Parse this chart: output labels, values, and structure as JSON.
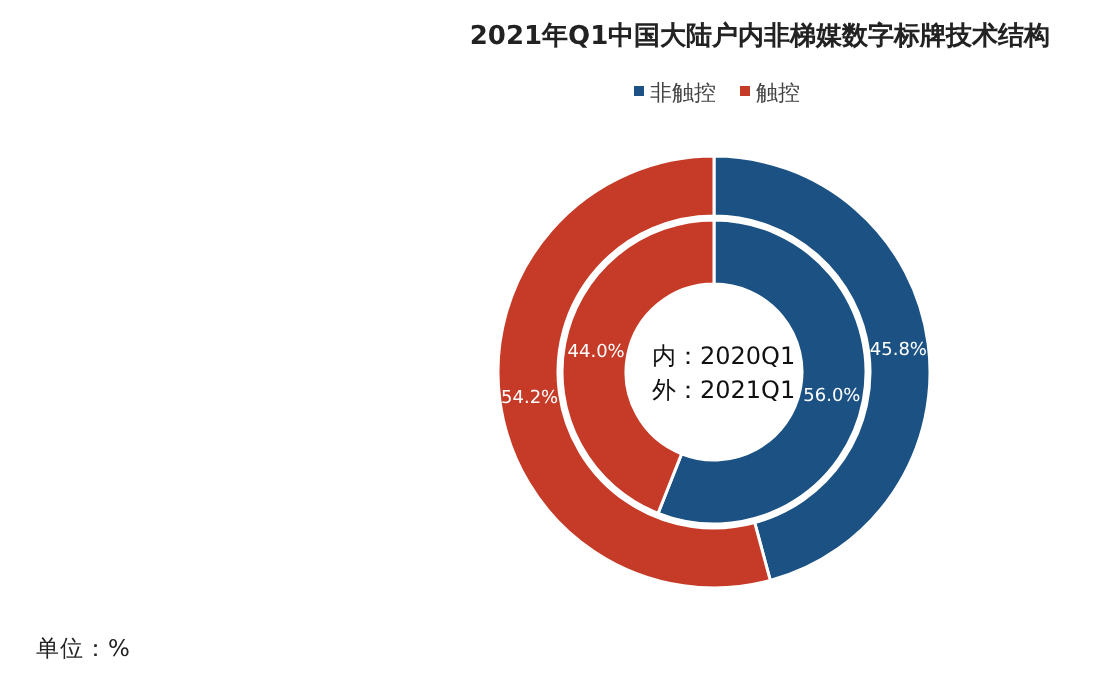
{
  "chart_data": {
    "type": "donut",
    "title": "2021年Q1中国大陆户内非梯媒数字标牌技术结构",
    "categories": [
      "非触控",
      "触控"
    ],
    "colors": [
      "#1b5283",
      "#c63b28"
    ],
    "legend": "top",
    "series": [
      {
        "values": [
          56.0,
          44.0
        ],
        "value_labels": [
          "56.0%",
          "44.0%"
        ]
      },
      {
        "values": [
          45.8,
          54.2
        ],
        "value_labels": [
          "45.8%",
          "54.2%"
        ]
      }
    ],
    "annotations": [
      "内：2020Q1",
      "外：2021Q1",
      "单位：%"
    ]
  }
}
